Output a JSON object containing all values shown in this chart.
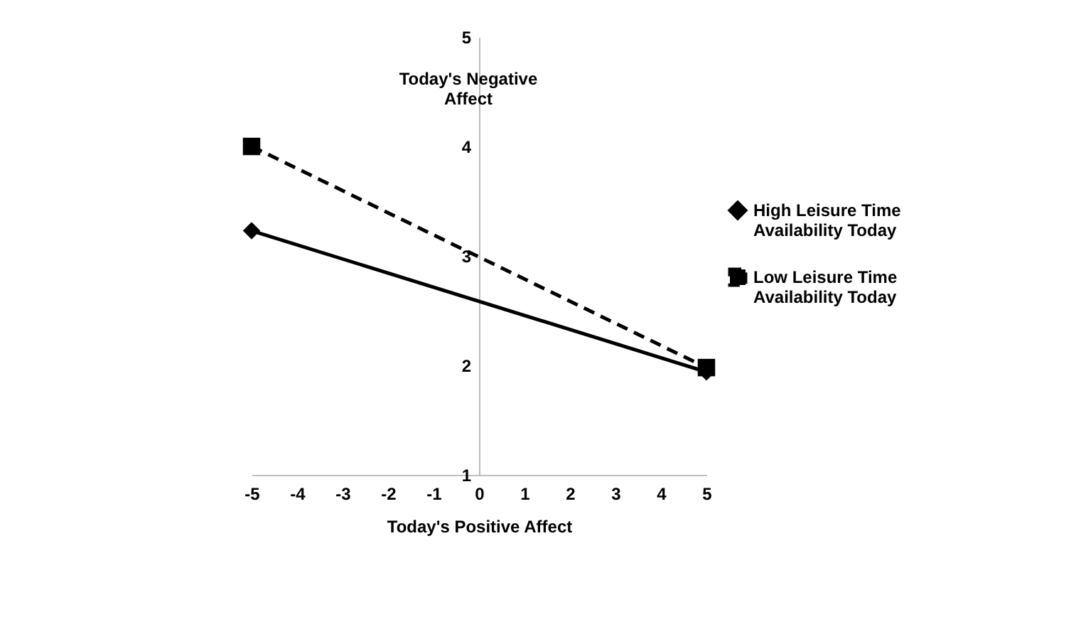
{
  "chart_data": {
    "type": "line",
    "xlabel": "Today's Positive Affect",
    "ylabel": "Today's Negative Affect",
    "x": [
      -5,
      5
    ],
    "series": [
      {
        "name": "High Leisure Time Availability Today",
        "color": "#000000",
        "values": [
          3.23,
          1.94
        ],
        "marker": "diamond",
        "line_style": "solid"
      },
      {
        "name": "Low Leisure Time Availability Today",
        "color": "#000000",
        "values": [
          4.0,
          1.98
        ],
        "marker": "square",
        "line_style": "dashed"
      }
    ],
    "xlim": [
      -5,
      5
    ],
    "xticks": [
      -5,
      -4,
      -3,
      -2,
      -1,
      0,
      1,
      2,
      3,
      4,
      5
    ],
    "ylim": [
      1,
      5
    ],
    "yticks": [
      1,
      2,
      3,
      4,
      5
    ],
    "grid": false,
    "legend": "right"
  }
}
